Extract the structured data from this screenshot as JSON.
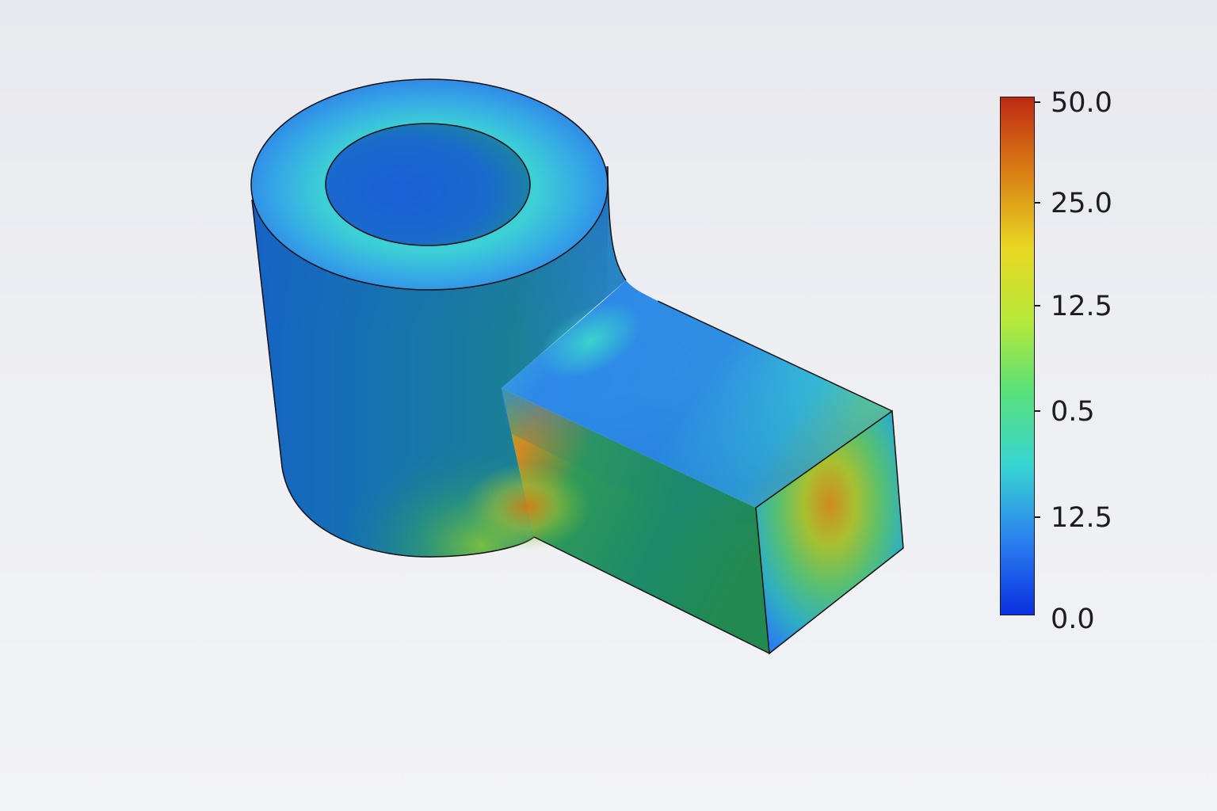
{
  "colormap": {
    "stops": [
      "#0b2fe0",
      "#2a7ff0",
      "#38d6d2",
      "#58e07a",
      "#b8e838",
      "#e8d622",
      "#d97c14",
      "#c02a14"
    ],
    "tick_labels": [
      "50.0",
      "25.0",
      "12.5",
      "0.5",
      "12.5",
      "0.0"
    ]
  },
  "model": {
    "colors": {
      "deep_blue": "#1a5fd8",
      "blue": "#2e8ae8",
      "cyan": "#3ccfd6",
      "teal": "#1c7f8a",
      "green": "#2f9a58",
      "yellow_green": "#7cc23a",
      "orange": "#d08a20",
      "outline": "#111111"
    }
  }
}
